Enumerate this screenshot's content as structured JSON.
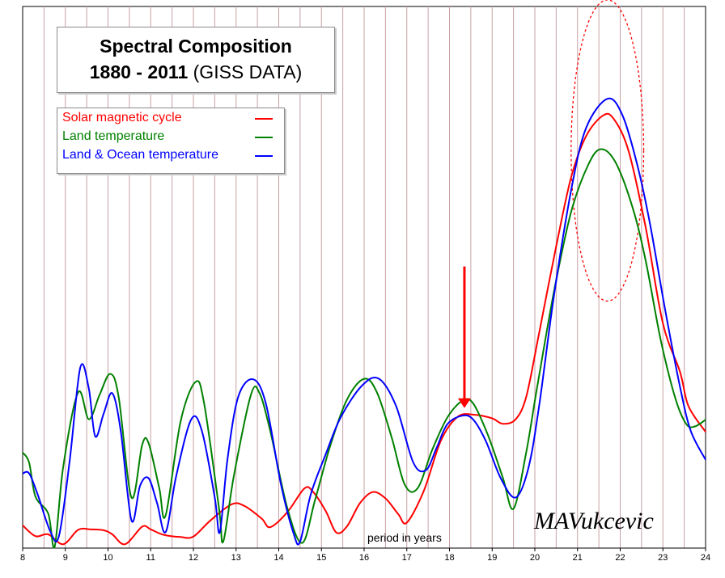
{
  "chart_data": {
    "type": "line",
    "title": "Spectral Composition",
    "subtitle_bold": "1880 - 2011",
    "subtitle_rest": "(GISS DATA)",
    "xlabel": "period in years",
    "ylabel": "",
    "xlim": [
      8,
      24
    ],
    "ylim": [
      0,
      100
    ],
    "x_ticks": [
      8,
      9,
      10,
      11,
      12,
      13,
      14,
      15,
      16,
      17,
      18,
      19,
      20,
      21,
      22,
      23,
      24
    ],
    "grid": "vertical",
    "legend_position": "top-left",
    "series": [
      {
        "name": "Solar magnetic cycle",
        "color": "#ff0000",
        "points": [
          [
            8,
            4.7
          ],
          [
            8.3,
            2.3
          ],
          [
            8.6,
            2.7
          ],
          [
            8.95,
            0.5
          ],
          [
            9.3,
            3.7
          ],
          [
            9.6,
            3.8
          ],
          [
            9.9,
            3.6
          ],
          [
            10.1,
            2.7
          ],
          [
            10.4,
            0.5
          ],
          [
            10.8,
            4.4
          ],
          [
            11,
            3.8
          ],
          [
            11.3,
            2.6
          ],
          [
            11.7,
            2.1
          ],
          [
            12,
            2.2
          ],
          [
            12.4,
            5.8
          ],
          [
            12.9,
            9.4
          ],
          [
            13.2,
            9
          ],
          [
            13.6,
            6.2
          ],
          [
            13.8,
            4.3
          ],
          [
            14.2,
            7.6
          ],
          [
            14.6,
            12.9
          ],
          [
            14.8,
            12.2
          ],
          [
            15.1,
            7.9
          ],
          [
            15.35,
            3.1
          ],
          [
            15.6,
            4.5
          ],
          [
            15.9,
            9.6
          ],
          [
            16.2,
            12.1
          ],
          [
            16.5,
            10.7
          ],
          [
            16.8,
            7.2
          ],
          [
            17,
            5.3
          ],
          [
            17.4,
            12.4
          ],
          [
            17.8,
            23.6
          ],
          [
            18.2,
            28.9
          ],
          [
            18.6,
            29.3
          ],
          [
            19,
            28.5
          ],
          [
            19.25,
            27.3
          ],
          [
            19.55,
            28.3
          ],
          [
            19.8,
            33.4
          ],
          [
            20.1,
            47.5
          ],
          [
            20.5,
            66.8
          ],
          [
            20.85,
            82.1
          ],
          [
            21.2,
            91.3
          ],
          [
            21.6,
            95.9
          ],
          [
            21.85,
            95.1
          ],
          [
            22.2,
            87.9
          ],
          [
            22.6,
            70.8
          ],
          [
            23,
            49.6
          ],
          [
            23.4,
            38.9
          ],
          [
            23.6,
            31.2
          ],
          [
            24,
            25.5
          ]
        ]
      },
      {
        "name": "Land temperature",
        "color": "#008000",
        "points": [
          [
            8,
            20.9
          ],
          [
            8.15,
            18.7
          ],
          [
            8.3,
            11.1
          ],
          [
            8.6,
            7.3
          ],
          [
            8.75,
            0
          ],
          [
            8.95,
            17.7
          ],
          [
            9.3,
            34.3
          ],
          [
            9.55,
            28.3
          ],
          [
            9.8,
            33.7
          ],
          [
            10.05,
            38.4
          ],
          [
            10.25,
            33.2
          ],
          [
            10.55,
            10.9
          ],
          [
            10.8,
            22.6
          ],
          [
            10.95,
            23
          ],
          [
            11.2,
            13
          ],
          [
            11.35,
            6.9
          ],
          [
            11.7,
            27.8
          ],
          [
            12.05,
            36.6
          ],
          [
            12.25,
            31.9
          ],
          [
            12.6,
            8.6
          ],
          [
            12.7,
            1.1
          ],
          [
            12.95,
            15.8
          ],
          [
            13.35,
            33.8
          ],
          [
            13.55,
            34.1
          ],
          [
            13.8,
            25.7
          ],
          [
            14.2,
            8.6
          ],
          [
            14.55,
            0.8
          ],
          [
            14.85,
            10.3
          ],
          [
            15.2,
            22.2
          ],
          [
            15.6,
            32.7
          ],
          [
            16,
            37.3
          ],
          [
            16.3,
            34.3
          ],
          [
            16.65,
            24.1
          ],
          [
            16.95,
            13.8
          ],
          [
            17.25,
            12.9
          ],
          [
            17.6,
            21.6
          ],
          [
            17.95,
            28.7
          ],
          [
            18.3,
            32.4
          ],
          [
            18.55,
            31.9
          ],
          [
            18.9,
            24.8
          ],
          [
            19.25,
            15.3
          ],
          [
            19.5,
            8.4
          ],
          [
            19.8,
            21.1
          ],
          [
            20.05,
            35.2
          ],
          [
            20.45,
            56.8
          ],
          [
            20.85,
            74.4
          ],
          [
            21.25,
            84.9
          ],
          [
            21.55,
            88.4
          ],
          [
            21.9,
            85.3
          ],
          [
            22.3,
            75.1
          ],
          [
            22.6,
            63.4
          ],
          [
            22.95,
            45.9
          ],
          [
            23.3,
            32.7
          ],
          [
            23.55,
            27.2
          ],
          [
            23.75,
            26.7
          ],
          [
            24,
            28.2
          ]
        ]
      },
      {
        "name": "Land & Ocean temperature",
        "color": "#0000ff",
        "points": [
          [
            8,
            16.2
          ],
          [
            8.15,
            16.3
          ],
          [
            8.35,
            11.6
          ],
          [
            8.65,
            3.3
          ],
          [
            8.85,
            2.3
          ],
          [
            9.1,
            18.9
          ],
          [
            9.35,
            39.8
          ],
          [
            9.55,
            35.1
          ],
          [
            9.7,
            24.5
          ],
          [
            9.9,
            29.6
          ],
          [
            10.1,
            34.1
          ],
          [
            10.3,
            25.6
          ],
          [
            10.55,
            5.8
          ],
          [
            10.75,
            13.5
          ],
          [
            10.95,
            15.2
          ],
          [
            11.15,
            9.6
          ],
          [
            11.35,
            3.2
          ],
          [
            11.6,
            15.8
          ],
          [
            11.95,
            28.3
          ],
          [
            12.2,
            25.7
          ],
          [
            12.5,
            10.9
          ],
          [
            12.62,
            3.2
          ],
          [
            12.8,
            19.5
          ],
          [
            13.05,
            33.3
          ],
          [
            13.4,
            37.2
          ],
          [
            13.7,
            31.7
          ],
          [
            14.05,
            13.9
          ],
          [
            14.35,
            2.8
          ],
          [
            14.5,
            1.1
          ],
          [
            14.75,
            11.6
          ],
          [
            15.1,
            20.5
          ],
          [
            15.45,
            28.7
          ],
          [
            15.95,
            35.8
          ],
          [
            16.35,
            37.3
          ],
          [
            16.75,
            31.2
          ],
          [
            17.15,
            18.7
          ],
          [
            17.45,
            17
          ],
          [
            17.7,
            22
          ],
          [
            17.95,
            27.2
          ],
          [
            18.3,
            29.1
          ],
          [
            18.55,
            28.3
          ],
          [
            18.85,
            23.5
          ],
          [
            19.2,
            15.2
          ],
          [
            19.55,
            10.9
          ],
          [
            19.85,
            17.5
          ],
          [
            20.1,
            31.3
          ],
          [
            20.45,
            55.9
          ],
          [
            20.85,
            79.2
          ],
          [
            21.2,
            93.1
          ],
          [
            21.7,
            99.6
          ],
          [
            22.05,
            96
          ],
          [
            22.4,
            84.9
          ],
          [
            22.7,
            71.7
          ],
          [
            23.05,
            52.8
          ],
          [
            23.4,
            35.6
          ],
          [
            23.65,
            25.8
          ],
          [
            24,
            19.3
          ]
        ]
      }
    ],
    "annotations": [
      {
        "type": "arrow",
        "color": "#ff0000",
        "x": 18.35,
        "y_top": 62.3,
        "y_tip": 30.8
      },
      {
        "type": "ellipse",
        "color": "#ff0000",
        "style": "dashed",
        "cx": 21.7,
        "cy": 88.1,
        "rx": 0.85,
        "ry": 33.5
      }
    ]
  },
  "signature": "MAVukcevic",
  "colors": {
    "grid": "#c9a0a6",
    "axis": "#000000"
  }
}
